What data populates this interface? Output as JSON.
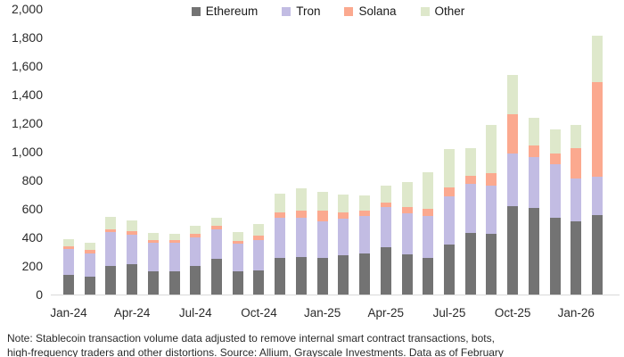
{
  "chart_data": {
    "type": "bar",
    "subtype": "stacked",
    "title": "",
    "xlabel": "",
    "ylabel": "",
    "ylim": [
      0,
      2000
    ],
    "grid": false,
    "legend_position": "top-center",
    "x": [
      "Jan-24",
      "Feb-24",
      "Mar-24",
      "Apr-24",
      "May-24",
      "Jun-24",
      "Jul-24",
      "Aug-24",
      "Sep-24",
      "Oct-24",
      "Nov-24",
      "Dec-24",
      "Jan-25",
      "Feb-25",
      "Mar-25",
      "Apr-25",
      "May-25",
      "Jun-25",
      "Jul-25",
      "Aug-25",
      "Sep-25",
      "Oct-25",
      "Nov-25",
      "Dec-25",
      "Jan-26",
      "Feb-26"
    ],
    "x_tick_labels": [
      "Jan-24",
      "Apr-24",
      "Jul-24",
      "Oct-24",
      "Jan-25",
      "Apr-25",
      "Jul-25",
      "Oct-25",
      "Jan-26"
    ],
    "y_ticks": [
      {
        "label": "0",
        "value": 0
      },
      {
        "label": "200",
        "value": 200
      },
      {
        "label": "400",
        "value": 400
      },
      {
        "label": "600",
        "value": 600
      },
      {
        "label": "800",
        "value": 800
      },
      {
        "label": "1,000",
        "value": 1000
      },
      {
        "label": "1,200",
        "value": 1200
      },
      {
        "label": "1,400",
        "value": 1400
      },
      {
        "label": "1,600",
        "value": 1600
      },
      {
        "label": "1,800",
        "value": 1800
      },
      {
        "label": "2,000",
        "value": 2000
      }
    ],
    "series": [
      {
        "name": "Ethereum",
        "color": "#737373",
        "values": [
          140,
          125,
          200,
          210,
          165,
          160,
          200,
          250,
          160,
          170,
          255,
          265,
          255,
          275,
          290,
          330,
          280,
          255,
          350,
          430,
          425,
          620,
          605,
          540,
          510,
          555
        ]
      },
      {
        "name": "Tron",
        "color": "#c2bce3",
        "values": [
          180,
          165,
          235,
          210,
          200,
          200,
          200,
          205,
          195,
          210,
          280,
          275,
          255,
          255,
          260,
          280,
          290,
          295,
          340,
          345,
          340,
          370,
          355,
          370,
          305,
          270
        ]
      },
      {
        "name": "Solana",
        "color": "#fba98f",
        "values": [
          20,
          25,
          20,
          25,
          15,
          20,
          25,
          25,
          20,
          30,
          40,
          50,
          75,
          45,
          35,
          35,
          45,
          50,
          60,
          55,
          85,
          275,
          85,
          75,
          210,
          665
        ]
      },
      {
        "name": "Other",
        "color": "#dee8cb",
        "values": [
          50,
          45,
          90,
          75,
          50,
          45,
          55,
          60,
          65,
          85,
          130,
          155,
          135,
          125,
          110,
          115,
          175,
          255,
          270,
          195,
          340,
          275,
          190,
          170,
          165,
          320
        ]
      }
    ]
  },
  "note": {
    "line1": "Note: Stablecoin transaction volume data adjusted to remove internal smart contract transactions, bots,",
    "line2": "high-frequency traders and other distortions. Source: Allium, Grayscale Investments. Data as of February"
  }
}
